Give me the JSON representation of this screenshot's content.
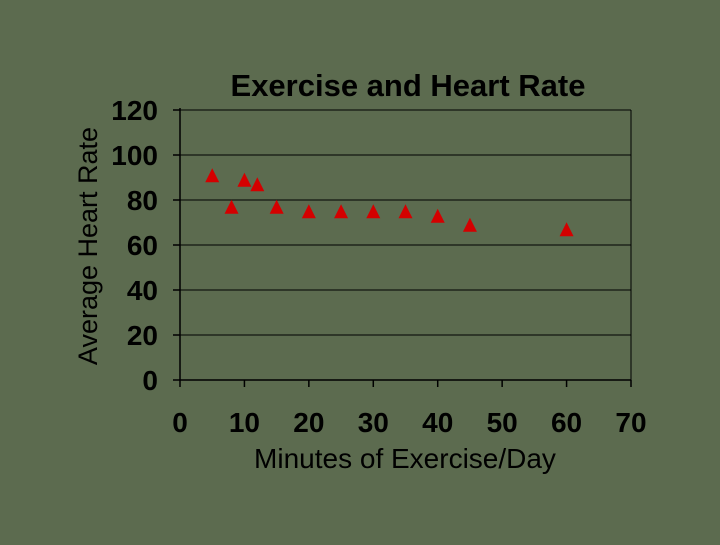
{
  "colors": {
    "background": "#5c6b4f",
    "text": "#000000",
    "grid": "#000000",
    "marker": "#d40000"
  },
  "chart_data": {
    "type": "scatter",
    "title": "Exercise and Heart Rate",
    "xlabel": "Minutes of Exercise/Day",
    "ylabel": "Average Heart Rate",
    "xlim": [
      0,
      70
    ],
    "ylim": [
      0,
      120
    ],
    "xticks": [
      0,
      10,
      20,
      30,
      40,
      50,
      60,
      70
    ],
    "yticks": [
      0,
      20,
      40,
      60,
      80,
      100,
      120
    ],
    "grid": "horizontal",
    "marker": "triangle",
    "points": [
      {
        "x": 5,
        "y": 91
      },
      {
        "x": 8,
        "y": 77
      },
      {
        "x": 10,
        "y": 89
      },
      {
        "x": 12,
        "y": 87
      },
      {
        "x": 15,
        "y": 77
      },
      {
        "x": 20,
        "y": 75
      },
      {
        "x": 25,
        "y": 75
      },
      {
        "x": 30,
        "y": 75
      },
      {
        "x": 35,
        "y": 75
      },
      {
        "x": 40,
        "y": 73
      },
      {
        "x": 45,
        "y": 69
      },
      {
        "x": 60,
        "y": 67
      }
    ]
  }
}
